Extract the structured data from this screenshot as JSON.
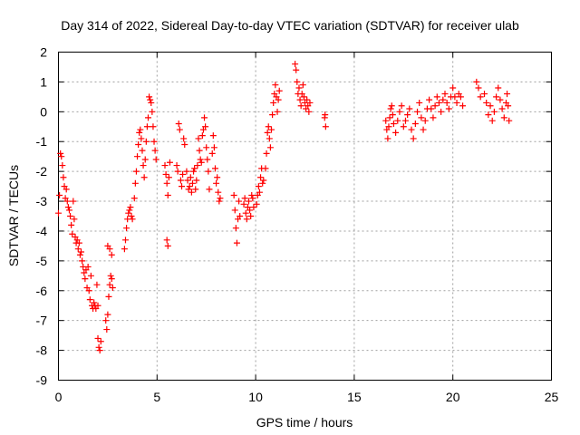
{
  "chart_data": {
    "type": "scatter",
    "title": "Day 314 of 2022, Sidereal Day-to-day VTEC variation (SDTVAR) for receiver ulab",
    "xlabel": "GPS time / hours",
    "ylabel": "SDTVAR / TECUs",
    "xlim": [
      0,
      25
    ],
    "ylim": [
      -9,
      2
    ],
    "xticks": [
      0,
      5,
      10,
      15,
      20,
      25
    ],
    "yticks": [
      -9,
      -8,
      -7,
      -6,
      -5,
      -4,
      -3,
      -2,
      -1,
      0,
      1,
      2
    ],
    "grid": true,
    "marker": "+",
    "series": [
      {
        "name": "SDTVAR",
        "color": "#ff0000",
        "points": [
          [
            0.0,
            -3.4
          ],
          [
            0.05,
            -2.8
          ],
          [
            0.1,
            -1.4
          ],
          [
            0.15,
            -1.5
          ],
          [
            0.2,
            -1.8
          ],
          [
            0.25,
            -2.2
          ],
          [
            0.3,
            -2.5
          ],
          [
            0.35,
            -2.9
          ],
          [
            0.4,
            -2.6
          ],
          [
            0.45,
            -3.0
          ],
          [
            0.5,
            -3.2
          ],
          [
            0.55,
            -3.3
          ],
          [
            0.6,
            -3.5
          ],
          [
            0.65,
            -3.8
          ],
          [
            0.7,
            -4.1
          ],
          [
            0.75,
            -3.0
          ],
          [
            0.8,
            -3.6
          ],
          [
            0.85,
            -4.2
          ],
          [
            0.9,
            -4.4
          ],
          [
            0.95,
            -4.3
          ],
          [
            1.0,
            -4.6
          ],
          [
            1.05,
            -4.4
          ],
          [
            1.1,
            -4.8
          ],
          [
            1.15,
            -4.7
          ],
          [
            1.2,
            -5.0
          ],
          [
            1.25,
            -5.2
          ],
          [
            1.3,
            -5.4
          ],
          [
            1.35,
            -5.6
          ],
          [
            1.4,
            -5.3
          ],
          [
            1.45,
            -5.9
          ],
          [
            1.5,
            -5.2
          ],
          [
            1.55,
            -6.0
          ],
          [
            1.6,
            -6.3
          ],
          [
            1.65,
            -5.5
          ],
          [
            1.7,
            -6.5
          ],
          [
            1.75,
            -6.6
          ],
          [
            1.8,
            -6.4
          ],
          [
            1.85,
            -6.5
          ],
          [
            1.9,
            -6.6
          ],
          [
            1.95,
            -5.8
          ],
          [
            2.0,
            -6.5
          ],
          [
            2.0,
            -7.6
          ],
          [
            2.05,
            -7.9
          ],
          [
            2.1,
            -8.0
          ],
          [
            2.15,
            -7.7
          ],
          [
            2.4,
            -7.0
          ],
          [
            2.45,
            -7.3
          ],
          [
            2.5,
            -6.8
          ],
          [
            2.55,
            -6.2
          ],
          [
            2.6,
            -5.8
          ],
          [
            2.65,
            -5.5
          ],
          [
            2.7,
            -5.6
          ],
          [
            2.75,
            -5.9
          ],
          [
            2.5,
            -4.5
          ],
          [
            2.6,
            -4.6
          ],
          [
            2.7,
            -4.8
          ],
          [
            3.35,
            -4.6
          ],
          [
            3.4,
            -4.3
          ],
          [
            3.45,
            -3.9
          ],
          [
            3.5,
            -3.6
          ],
          [
            3.55,
            -3.4
          ],
          [
            3.6,
            -3.3
          ],
          [
            3.65,
            -3.2
          ],
          [
            3.7,
            -3.5
          ],
          [
            3.75,
            -3.6
          ],
          [
            3.85,
            -2.9
          ],
          [
            3.9,
            -2.4
          ],
          [
            3.95,
            -2.0
          ],
          [
            4.0,
            -1.5
          ],
          [
            4.05,
            -1.1
          ],
          [
            4.1,
            -0.7
          ],
          [
            4.15,
            -0.6
          ],
          [
            4.2,
            -0.9
          ],
          [
            4.25,
            -1.3
          ],
          [
            4.3,
            -1.8
          ],
          [
            4.35,
            -2.2
          ],
          [
            4.4,
            -1.6
          ],
          [
            4.45,
            -1.0
          ],
          [
            4.5,
            -0.5
          ],
          [
            4.55,
            -0.2
          ],
          [
            4.6,
            0.5
          ],
          [
            4.65,
            0.4
          ],
          [
            4.7,
            0.3
          ],
          [
            4.75,
            0.0
          ],
          [
            4.8,
            -0.5
          ],
          [
            4.85,
            -1.0
          ],
          [
            4.9,
            -1.3
          ],
          [
            4.95,
            -1.6
          ],
          [
            5.4,
            -1.8
          ],
          [
            5.45,
            -2.1
          ],
          [
            5.5,
            -2.4
          ],
          [
            5.55,
            -2.8
          ],
          [
            5.6,
            -2.2
          ],
          [
            5.65,
            -1.7
          ],
          [
            5.5,
            -4.3
          ],
          [
            5.55,
            -4.5
          ],
          [
            6.0,
            -1.8
          ],
          [
            6.05,
            -2.0
          ],
          [
            6.1,
            -0.4
          ],
          [
            6.15,
            -0.6
          ],
          [
            6.2,
            -2.3
          ],
          [
            6.25,
            -2.5
          ],
          [
            6.3,
            -2.1
          ],
          [
            6.35,
            -0.9
          ],
          [
            6.4,
            -1.1
          ],
          [
            6.5,
            -2.0
          ],
          [
            6.55,
            -2.3
          ],
          [
            6.6,
            -2.6
          ],
          [
            6.65,
            -2.5
          ],
          [
            6.7,
            -2.2
          ],
          [
            6.75,
            -2.7
          ],
          [
            6.8,
            -2.4
          ],
          [
            6.85,
            -2.0
          ],
          [
            6.9,
            -1.9
          ],
          [
            6.95,
            -2.6
          ],
          [
            7.0,
            -2.3
          ],
          [
            7.05,
            -1.8
          ],
          [
            7.1,
            -0.9
          ],
          [
            7.15,
            -1.3
          ],
          [
            7.2,
            -1.6
          ],
          [
            7.25,
            -1.7
          ],
          [
            7.3,
            -0.8
          ],
          [
            7.35,
            -0.6
          ],
          [
            7.4,
            -0.2
          ],
          [
            7.45,
            -0.5
          ],
          [
            7.5,
            -1.2
          ],
          [
            7.55,
            -1.6
          ],
          [
            7.6,
            -2.0
          ],
          [
            7.65,
            -2.6
          ],
          [
            7.8,
            -1.4
          ],
          [
            7.85,
            -0.8
          ],
          [
            7.9,
            -1.2
          ],
          [
            7.95,
            -1.9
          ],
          [
            8.0,
            -2.4
          ],
          [
            8.05,
            -2.2
          ],
          [
            8.1,
            -2.7
          ],
          [
            8.15,
            -3.0
          ],
          [
            8.2,
            -2.9
          ],
          [
            8.9,
            -2.8
          ],
          [
            8.95,
            -3.3
          ],
          [
            9.0,
            -3.9
          ],
          [
            9.05,
            -4.4
          ],
          [
            9.1,
            -3.6
          ],
          [
            9.15,
            -3.0
          ],
          [
            9.2,
            -3.5
          ],
          [
            9.4,
            -3.1
          ],
          [
            9.45,
            -2.9
          ],
          [
            9.5,
            -3.4
          ],
          [
            9.55,
            -3.6
          ],
          [
            9.6,
            -3.2
          ],
          [
            9.65,
            -3.0
          ],
          [
            9.7,
            -3.3
          ],
          [
            9.75,
            -3.5
          ],
          [
            9.8,
            -2.8
          ],
          [
            9.85,
            -2.9
          ],
          [
            9.9,
            -3.2
          ],
          [
            10.05,
            -3.1
          ],
          [
            10.1,
            -2.8
          ],
          [
            10.15,
            -2.5
          ],
          [
            10.2,
            -2.7
          ],
          [
            10.25,
            -2.2
          ],
          [
            10.3,
            -1.9
          ],
          [
            10.35,
            -2.4
          ],
          [
            10.4,
            -2.3
          ],
          [
            10.5,
            -1.9
          ],
          [
            10.55,
            -1.4
          ],
          [
            10.6,
            -0.7
          ],
          [
            10.65,
            -0.5
          ],
          [
            10.7,
            -0.9
          ],
          [
            10.75,
            -1.2
          ],
          [
            10.8,
            -0.6
          ],
          [
            10.85,
            -0.1
          ],
          [
            10.9,
            0.3
          ],
          [
            10.95,
            0.6
          ],
          [
            11.0,
            0.9
          ],
          [
            11.05,
            0.5
          ],
          [
            11.1,
            0.0
          ],
          [
            11.15,
            0.4
          ],
          [
            11.2,
            0.7
          ],
          [
            12.0,
            1.6
          ],
          [
            12.05,
            1.4
          ],
          [
            12.1,
            1.0
          ],
          [
            12.15,
            0.6
          ],
          [
            12.2,
            0.8
          ],
          [
            12.25,
            0.4
          ],
          [
            12.3,
            0.2
          ],
          [
            12.35,
            0.6
          ],
          [
            12.4,
            0.9
          ],
          [
            12.45,
            0.5
          ],
          [
            12.5,
            0.3
          ],
          [
            12.55,
            0.1
          ],
          [
            12.6,
            0.4
          ],
          [
            12.65,
            0.2
          ],
          [
            12.7,
            0.0
          ],
          [
            12.75,
            0.3
          ],
          [
            13.5,
            -0.2
          ],
          [
            13.52,
            -0.1
          ],
          [
            13.55,
            -0.5
          ],
          [
            16.6,
            -0.3
          ],
          [
            16.65,
            -0.6
          ],
          [
            16.7,
            -0.9
          ],
          [
            16.75,
            -0.5
          ],
          [
            16.8,
            -0.2
          ],
          [
            16.85,
            0.1
          ],
          [
            16.9,
            0.2
          ],
          [
            16.95,
            -0.1
          ],
          [
            17.0,
            -0.4
          ],
          [
            17.1,
            -0.7
          ],
          [
            17.2,
            -0.3
          ],
          [
            17.3,
            0.0
          ],
          [
            17.4,
            0.2
          ],
          [
            17.5,
            -0.5
          ],
          [
            17.6,
            -0.3
          ],
          [
            17.7,
            -0.1
          ],
          [
            17.8,
            0.1
          ],
          [
            17.9,
            -0.6
          ],
          [
            18.0,
            -0.9
          ],
          [
            18.1,
            -0.4
          ],
          [
            18.2,
            0.0
          ],
          [
            18.3,
            0.3
          ],
          [
            18.4,
            -0.2
          ],
          [
            18.5,
            -0.6
          ],
          [
            18.6,
            -0.3
          ],
          [
            18.7,
            0.1
          ],
          [
            18.8,
            0.4
          ],
          [
            18.9,
            0.1
          ],
          [
            19.0,
            -0.2
          ],
          [
            19.1,
            0.2
          ],
          [
            19.2,
            0.5
          ],
          [
            19.3,
            0.3
          ],
          [
            19.4,
            0.0
          ],
          [
            19.5,
            0.4
          ],
          [
            19.6,
            0.6
          ],
          [
            19.7,
            0.3
          ],
          [
            19.8,
            0.1
          ],
          [
            19.9,
            0.5
          ],
          [
            20.0,
            0.8
          ],
          [
            20.1,
            0.5
          ],
          [
            20.2,
            0.3
          ],
          [
            20.3,
            0.6
          ],
          [
            20.4,
            0.5
          ],
          [
            20.5,
            0.2
          ],
          [
            21.2,
            1.0
          ],
          [
            21.3,
            0.8
          ],
          [
            21.4,
            0.5
          ],
          [
            21.6,
            0.6
          ],
          [
            21.7,
            0.3
          ],
          [
            21.8,
            -0.1
          ],
          [
            21.9,
            0.2
          ],
          [
            22.0,
            -0.3
          ],
          [
            22.1,
            0.0
          ],
          [
            22.2,
            0.5
          ],
          [
            22.3,
            0.8
          ],
          [
            22.4,
            0.4
          ],
          [
            22.5,
            0.1
          ],
          [
            22.6,
            -0.2
          ],
          [
            22.7,
            0.3
          ],
          [
            22.75,
            0.6
          ],
          [
            22.8,
            0.2
          ],
          [
            22.85,
            -0.3
          ]
        ]
      }
    ]
  }
}
